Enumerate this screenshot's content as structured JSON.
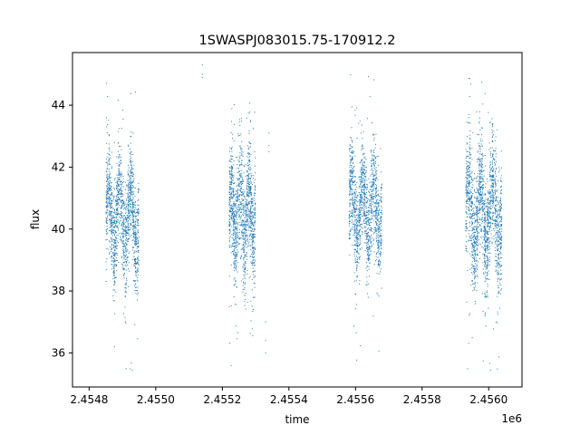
{
  "chart_data": {
    "type": "scatter",
    "title": "1SWASPJ083015.75-170912.2",
    "xlabel": "time",
    "ylabel": "flux",
    "x_offset_text": "1e6",
    "x_tick_values": [
      2.4548,
      2.455,
      2.4552,
      2.4554,
      2.4556,
      2.4558,
      2.456
    ],
    "x_tick_labels": [
      "2.4548",
      "2.4550",
      "2.4552",
      "2.4554",
      "2.4556",
      "2.4558",
      "2.4560"
    ],
    "y_tick_values": [
      36,
      38,
      40,
      42,
      44
    ],
    "y_tick_labels": [
      "36",
      "38",
      "40",
      "42",
      "44"
    ],
    "xlim": [
      2.45475,
      2.4561
    ],
    "ylim": [
      34.9,
      45.7
    ],
    "grid": false,
    "legend": "none",
    "marker_color": "#1f77b4",
    "observation_seasons": [
      {
        "x_range": [
          2.45485,
          2.45495
        ],
        "flux_core_range": [
          38.0,
          42.8
        ],
        "flux_outlier_range": [
          35.3,
          45.3
        ],
        "oscillation_amplitude": 1.0,
        "points_approx": 1500
      },
      {
        "x_range": [
          2.45522,
          2.4553
        ],
        "flux_core_range": [
          37.8,
          43.2
        ],
        "flux_outlier_range": [
          35.5,
          44.2
        ],
        "oscillation_amplitude": 0.9,
        "points_approx": 1300
      },
      {
        "x_range": [
          2.45558,
          2.45568
        ],
        "flux_core_range": [
          38.3,
          43.0
        ],
        "flux_outlier_range": [
          35.4,
          45.0
        ],
        "oscillation_amplitude": 0.9,
        "points_approx": 1400
      },
      {
        "x_range": [
          2.45593,
          2.45604
        ],
        "flux_core_range": [
          37.8,
          43.3
        ],
        "flux_outlier_range": [
          35.4,
          45.2
        ],
        "oscillation_amplitude": 1.1,
        "points_approx": 1700
      }
    ],
    "sparse_points": [
      {
        "x": 2.45514,
        "y": 45.3
      },
      {
        "x": 2.45514,
        "y": 45.0
      },
      {
        "x": 2.45514,
        "y": 44.9
      },
      {
        "x": 2.45534,
        "y": 43.1
      },
      {
        "x": 2.45534,
        "y": 42.7
      },
      {
        "x": 2.45534,
        "y": 42.5
      },
      {
        "x": 2.45533,
        "y": 37.0
      },
      {
        "x": 2.45533,
        "y": 36.4
      },
      {
        "x": 2.45533,
        "y": 36.0
      }
    ]
  }
}
